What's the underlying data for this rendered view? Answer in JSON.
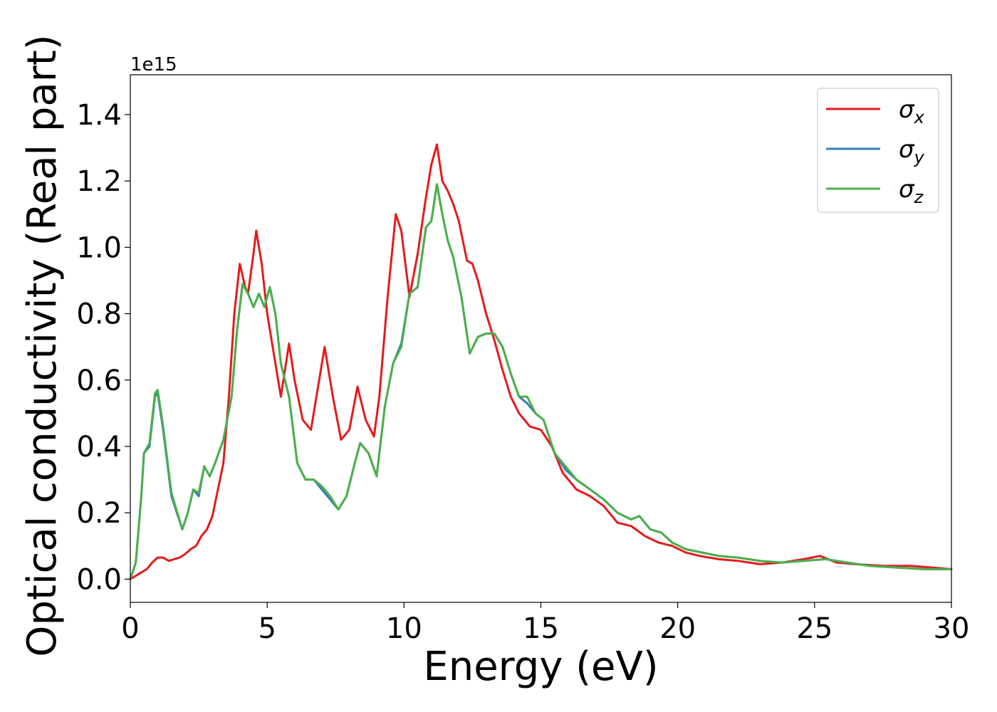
{
  "chart_data": {
    "type": "line",
    "xlabel": "Energy (eV)",
    "ylabel": "Optical conductivity (Real part)",
    "y_offset_label": "1e15",
    "xlim": [
      0,
      30
    ],
    "ylim": [
      -0.07,
      1.52
    ],
    "xticks": [
      0,
      5,
      10,
      15,
      20,
      25,
      30
    ],
    "xtick_labels": [
      "0",
      "5",
      "10",
      "15",
      "20",
      "25",
      "30"
    ],
    "yticks": [
      0.0,
      0.2,
      0.4,
      0.6,
      0.8,
      1.0,
      1.2,
      1.4
    ],
    "ytick_labels": [
      "0.0",
      "0.2",
      "0.4",
      "0.6",
      "0.8",
      "1.0",
      "1.2",
      "1.4"
    ],
    "grid": false,
    "legend_position": "top-right",
    "series": [
      {
        "name": "σx",
        "legend_symbol": "σ",
        "legend_sub": "x",
        "color": "#e41a1c",
        "x": [
          0,
          0.2,
          0.4,
          0.6,
          0.8,
          1.0,
          1.2,
          1.4,
          1.6,
          1.8,
          2.0,
          2.2,
          2.4,
          2.6,
          2.8,
          3.0,
          3.2,
          3.4,
          3.6,
          3.8,
          4.0,
          4.2,
          4.3,
          4.5,
          4.6,
          4.8,
          5.0,
          5.2,
          5.5,
          5.8,
          6.0,
          6.3,
          6.6,
          6.8,
          7.1,
          7.4,
          7.7,
          8.0,
          8.3,
          8.6,
          8.9,
          9.1,
          9.4,
          9.7,
          9.9,
          10.2,
          10.5,
          10.8,
          11.0,
          11.2,
          11.4,
          11.6,
          11.8,
          12.0,
          12.3,
          12.5,
          12.7,
          13.0,
          13.3,
          13.6,
          13.9,
          14.2,
          14.6,
          15.0,
          15.4,
          15.8,
          16.3,
          16.8,
          17.3,
          17.8,
          18.3,
          18.8,
          19.3,
          19.8,
          20.3,
          20.8,
          21.5,
          22.2,
          23.0,
          23.8,
          24.6,
          25.2,
          25.8,
          26.5,
          27.5,
          28.5,
          29.3,
          30.0
        ],
        "y": [
          0.0,
          0.01,
          0.02,
          0.03,
          0.05,
          0.065,
          0.065,
          0.055,
          0.06,
          0.065,
          0.075,
          0.09,
          0.1,
          0.13,
          0.15,
          0.19,
          0.27,
          0.35,
          0.55,
          0.8,
          0.95,
          0.88,
          0.86,
          0.98,
          1.05,
          0.95,
          0.8,
          0.7,
          0.55,
          0.71,
          0.6,
          0.48,
          0.45,
          0.55,
          0.7,
          0.55,
          0.42,
          0.45,
          0.58,
          0.48,
          0.43,
          0.55,
          0.85,
          1.1,
          1.05,
          0.85,
          0.98,
          1.15,
          1.25,
          1.31,
          1.2,
          1.17,
          1.13,
          1.08,
          0.96,
          0.95,
          0.9,
          0.8,
          0.72,
          0.63,
          0.55,
          0.5,
          0.46,
          0.45,
          0.4,
          0.32,
          0.27,
          0.25,
          0.22,
          0.17,
          0.16,
          0.13,
          0.11,
          0.1,
          0.08,
          0.07,
          0.06,
          0.055,
          0.045,
          0.05,
          0.06,
          0.07,
          0.05,
          0.045,
          0.04,
          0.04,
          0.035,
          0.03
        ]
      },
      {
        "name": "σy",
        "legend_symbol": "σ",
        "legend_sub": "y",
        "color": "#377eb8",
        "x": [
          0,
          0.2,
          0.4,
          0.5,
          0.7,
          0.9,
          1.0,
          1.2,
          1.5,
          1.9,
          2.1,
          2.3,
          2.5,
          2.7,
          2.9,
          3.1,
          3.4,
          3.7,
          3.9,
          4.1,
          4.3,
          4.5,
          4.7,
          4.9,
          5.1,
          5.3,
          5.5,
          5.8,
          6.1,
          6.4,
          6.7,
          7.0,
          7.3,
          7.6,
          7.9,
          8.2,
          8.4,
          8.7,
          9.0,
          9.3,
          9.6,
          9.9,
          10.2,
          10.5,
          10.8,
          11.0,
          11.2,
          11.4,
          11.6,
          11.8,
          12.1,
          12.4,
          12.7,
          13.0,
          13.3,
          13.6,
          13.9,
          14.2,
          14.5,
          14.8,
          15.1,
          15.5,
          15.9,
          16.3,
          16.8,
          17.3,
          17.8,
          18.3,
          18.6,
          19.0,
          19.4,
          19.8,
          20.3,
          20.9,
          21.5,
          22.2,
          23.0,
          23.8,
          24.6,
          25.4,
          26.2,
          27.0,
          28.0,
          29.0,
          30.0
        ],
        "y": [
          0.0,
          0.05,
          0.25,
          0.38,
          0.4,
          0.55,
          0.56,
          0.45,
          0.25,
          0.15,
          0.2,
          0.27,
          0.25,
          0.34,
          0.31,
          0.35,
          0.42,
          0.55,
          0.75,
          0.89,
          0.86,
          0.82,
          0.86,
          0.82,
          0.88,
          0.8,
          0.65,
          0.55,
          0.35,
          0.3,
          0.3,
          0.27,
          0.24,
          0.21,
          0.25,
          0.35,
          0.41,
          0.38,
          0.31,
          0.52,
          0.65,
          0.71,
          0.86,
          0.88,
          1.06,
          1.08,
          1.19,
          1.1,
          1.02,
          0.97,
          0.85,
          0.68,
          0.73,
          0.74,
          0.74,
          0.7,
          0.62,
          0.55,
          0.53,
          0.5,
          0.48,
          0.38,
          0.33,
          0.3,
          0.27,
          0.24,
          0.2,
          0.18,
          0.19,
          0.15,
          0.14,
          0.11,
          0.09,
          0.08,
          0.07,
          0.065,
          0.055,
          0.05,
          0.055,
          0.06,
          0.05,
          0.04,
          0.035,
          0.03,
          0.03
        ]
      },
      {
        "name": "σz",
        "legend_symbol": "σ",
        "legend_sub": "z",
        "color": "#4daf4a",
        "x": [
          0,
          0.2,
          0.4,
          0.5,
          0.7,
          0.9,
          1.0,
          1.2,
          1.5,
          1.9,
          2.1,
          2.3,
          2.5,
          2.7,
          2.9,
          3.1,
          3.4,
          3.7,
          3.9,
          4.1,
          4.3,
          4.5,
          4.7,
          4.9,
          5.1,
          5.3,
          5.5,
          5.8,
          6.1,
          6.4,
          6.7,
          7.0,
          7.3,
          7.6,
          7.9,
          8.2,
          8.4,
          8.7,
          9.0,
          9.3,
          9.6,
          9.9,
          10.2,
          10.5,
          10.8,
          11.0,
          11.2,
          11.4,
          11.6,
          11.8,
          12.1,
          12.4,
          12.7,
          13.0,
          13.3,
          13.6,
          13.9,
          14.2,
          14.5,
          14.8,
          15.1,
          15.5,
          15.9,
          16.3,
          16.8,
          17.3,
          17.8,
          18.3,
          18.6,
          19.0,
          19.4,
          19.8,
          20.3,
          20.9,
          21.5,
          22.2,
          23.0,
          23.8,
          24.6,
          25.4,
          26.2,
          27.0,
          28.0,
          29.0,
          30.0
        ],
        "y": [
          0.0,
          0.05,
          0.25,
          0.38,
          0.41,
          0.56,
          0.57,
          0.46,
          0.26,
          0.15,
          0.2,
          0.27,
          0.26,
          0.34,
          0.31,
          0.35,
          0.42,
          0.55,
          0.75,
          0.89,
          0.86,
          0.82,
          0.86,
          0.82,
          0.88,
          0.8,
          0.65,
          0.55,
          0.35,
          0.3,
          0.3,
          0.28,
          0.25,
          0.21,
          0.25,
          0.35,
          0.41,
          0.38,
          0.31,
          0.52,
          0.65,
          0.7,
          0.86,
          0.88,
          1.06,
          1.08,
          1.19,
          1.1,
          1.02,
          0.97,
          0.85,
          0.68,
          0.73,
          0.74,
          0.74,
          0.7,
          0.62,
          0.55,
          0.55,
          0.5,
          0.48,
          0.38,
          0.34,
          0.3,
          0.27,
          0.24,
          0.2,
          0.18,
          0.19,
          0.15,
          0.14,
          0.11,
          0.09,
          0.08,
          0.07,
          0.065,
          0.055,
          0.05,
          0.055,
          0.06,
          0.05,
          0.04,
          0.035,
          0.03,
          0.03
        ]
      }
    ]
  }
}
